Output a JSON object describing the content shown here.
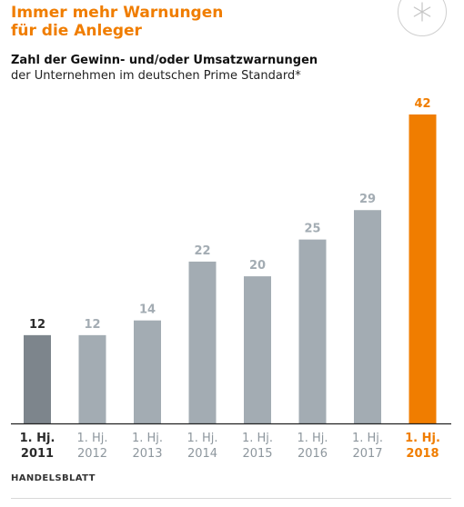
{
  "header": {
    "title_line1": "Immer mehr Warnungen",
    "title_line2": "für die Anleger",
    "subtitle": "Zahl der Gewinn- und/oder Umsatzwarnungen",
    "subtitle2": "der Unternehmen im deutschen Prime Standard*"
  },
  "source": "HANDELSBLATT",
  "colors": {
    "first_bar": "#7d858c",
    "middle_bars": "#a3acb3",
    "last_bar": "#f07d00",
    "title": "#f07d00"
  },
  "logo_icon": "asterisk-icon",
  "chart_data": {
    "type": "bar",
    "title": "Zahl der Gewinn- und/oder Umsatzwarnungen",
    "categories": [
      [
        "1. Hj.",
        "2011"
      ],
      [
        "1. Hj.",
        "2012"
      ],
      [
        "1. Hj.",
        "2013"
      ],
      [
        "1. Hj.",
        "2014"
      ],
      [
        "1. Hj.",
        "2015"
      ],
      [
        "1. Hj.",
        "2016"
      ],
      [
        "1. Hj.",
        "2017"
      ],
      [
        "1. Hj.",
        "2018"
      ]
    ],
    "values": [
      12,
      12,
      14,
      22,
      20,
      25,
      29,
      42
    ],
    "xlabel": "",
    "ylabel": "",
    "ylim": [
      0,
      42
    ],
    "grid": false,
    "data_labels": true
  }
}
